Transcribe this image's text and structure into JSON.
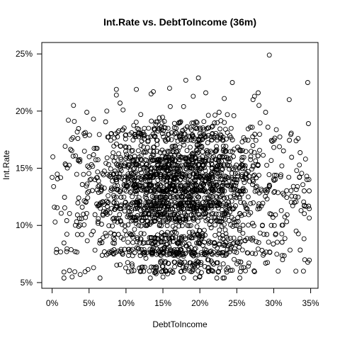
{
  "chart_data": {
    "type": "scatter",
    "title": "Int.Rate vs. DebtToIncome (36m)",
    "xlabel": "DebtToIncome",
    "ylabel": "Int.Rate",
    "xlim": [
      -0.014,
      0.36
    ],
    "ylim": [
      0.045,
      0.26
    ],
    "x_ticks": [
      {
        "value": 0.0,
        "label": "0%"
      },
      {
        "value": 0.05,
        "label": "5%"
      },
      {
        "value": 0.1,
        "label": "10%"
      },
      {
        "value": 0.15,
        "label": "15%"
      },
      {
        "value": 0.2,
        "label": "20%"
      },
      {
        "value": 0.25,
        "label": "25%"
      },
      {
        "value": 0.3,
        "label": "30%"
      },
      {
        "value": 0.35,
        "label": "35%"
      }
    ],
    "y_ticks": [
      {
        "value": 0.05,
        "label": "5%"
      },
      {
        "value": 0.1,
        "label": "10%"
      },
      {
        "value": 0.15,
        "label": "15%"
      },
      {
        "value": 0.2,
        "label": "20%"
      },
      {
        "value": 0.25,
        "label": "25%"
      }
    ],
    "grid": false,
    "legend": "none",
    "marker": "open-circle",
    "points": [
      [
        0.294,
        0.249
      ],
      [
        0.346,
        0.225
      ],
      [
        0.244,
        0.225
      ],
      [
        0.198,
        0.229
      ],
      [
        0.181,
        0.227
      ],
      [
        0.208,
        0.216
      ],
      [
        0.159,
        0.22
      ],
      [
        0.137,
        0.217
      ],
      [
        0.134,
        0.215
      ],
      [
        0.087,
        0.219
      ],
      [
        0.114,
        0.219
      ],
      [
        0.087,
        0.214
      ],
      [
        0.191,
        0.213
      ],
      [
        0.321,
        0.21
      ],
      [
        0.272,
        0.21
      ],
      [
        0.274,
        0.213
      ],
      [
        0.279,
        0.216
      ],
      [
        0.233,
        0.211
      ],
      [
        0.28,
        0.205
      ],
      [
        0.029,
        0.205
      ],
      [
        0.092,
        0.207
      ],
      [
        0.16,
        0.204
      ],
      [
        0.096,
        0.201
      ],
      [
        0.074,
        0.2
      ],
      [
        0.289,
        0.199
      ],
      [
        0.246,
        0.196
      ],
      [
        0.047,
        0.199
      ],
      [
        0.022,
        0.192
      ],
      [
        0.03,
        0.191
      ],
      [
        0.056,
        0.193
      ],
      [
        0.12,
        0.197
      ],
      [
        0.152,
        0.191
      ],
      [
        0.226,
        0.199
      ],
      [
        0.178,
        0.204
      ],
      [
        0.001,
        0.16
      ],
      [
        0.0,
        0.142
      ],
      [
        0.002,
        0.134
      ],
      [
        0.004,
        0.103
      ],
      [
        0.006,
        0.079
      ],
      [
        0.003,
        0.116
      ],
      [
        0.345,
        0.14
      ],
      [
        0.337,
        0.113
      ],
      [
        0.331,
        0.148
      ],
      [
        0.333,
        0.176
      ],
      [
        0.343,
        0.158
      ],
      [
        0.312,
        0.07
      ],
      [
        0.342,
        0.07
      ],
      [
        0.33,
        0.06
      ],
      [
        0.306,
        0.06
      ],
      [
        0.289,
        0.067
      ],
      [
        0.254,
        0.054
      ],
      [
        0.223,
        0.054
      ],
      [
        0.027,
        0.055
      ],
      [
        0.038,
        0.057
      ],
      [
        0.016,
        0.054
      ]
    ],
    "seed": 20240611,
    "generated_point_count": 2300
  }
}
